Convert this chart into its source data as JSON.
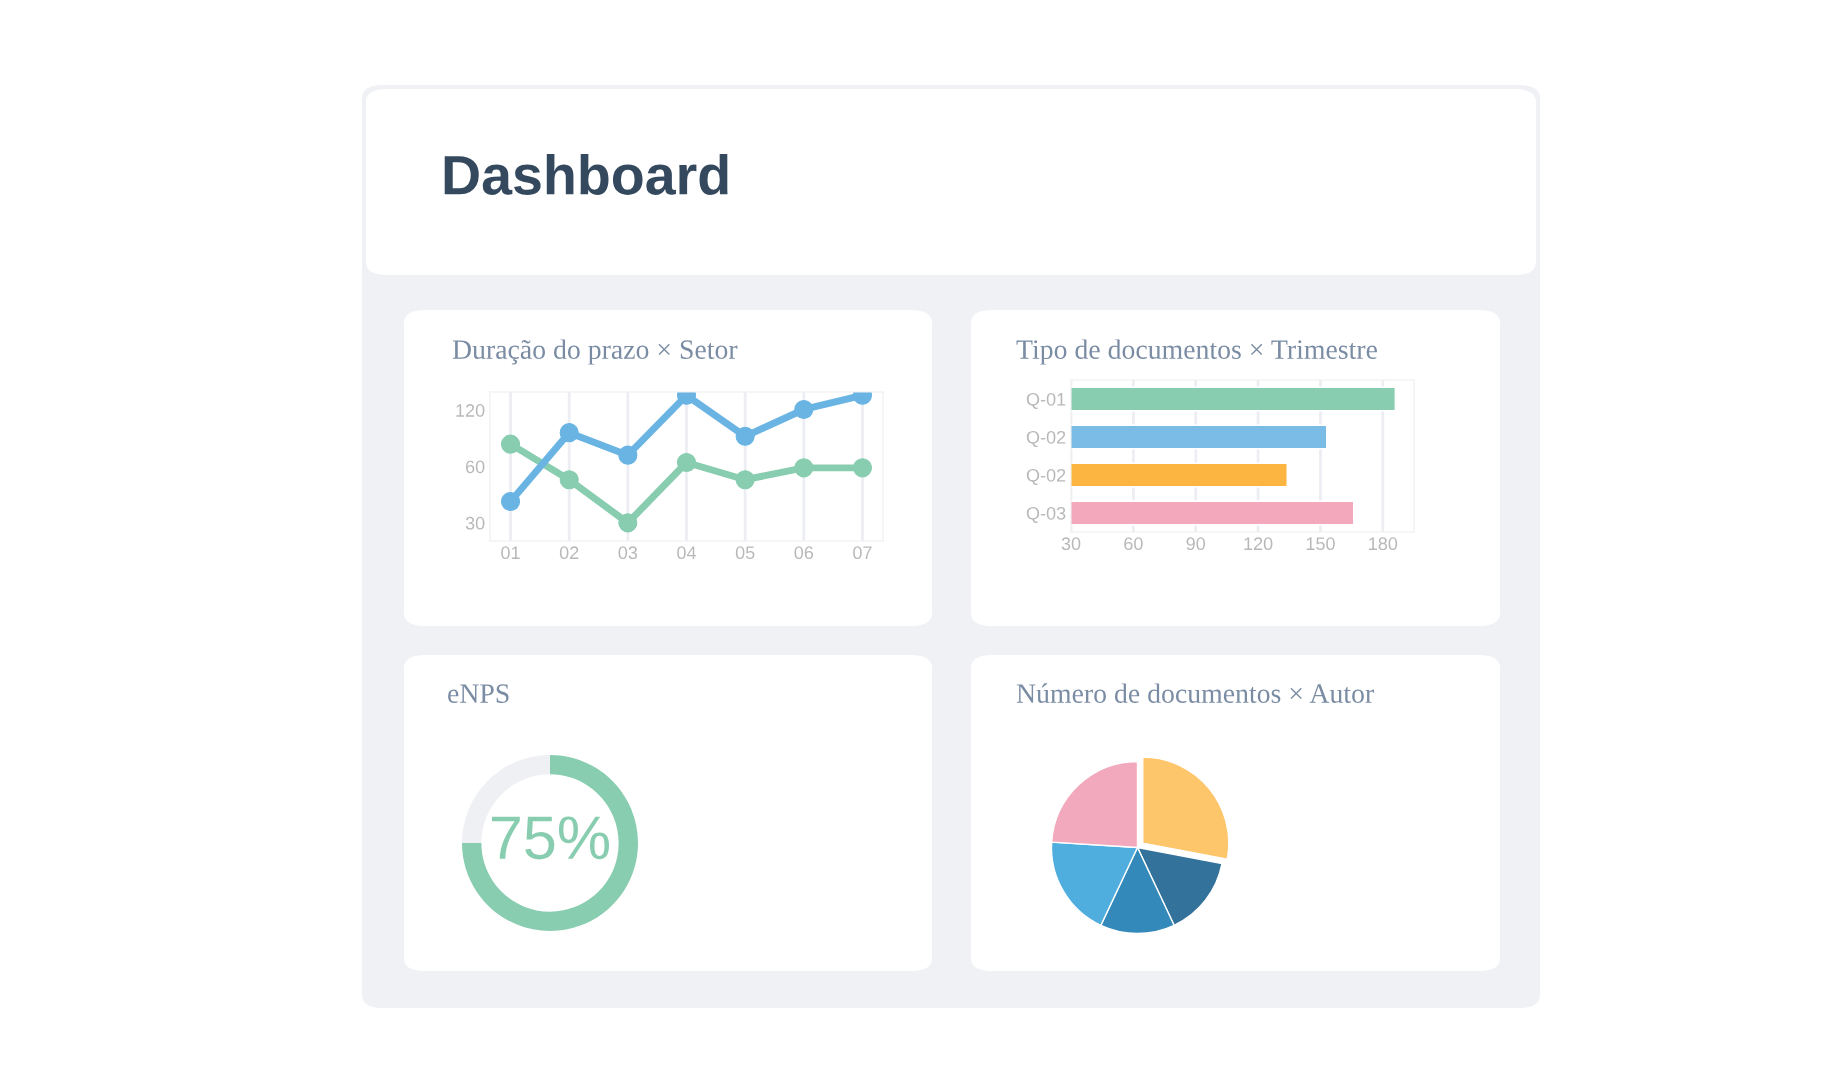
{
  "chart_data": [
    {
      "type": "other",
      "title": "Dashboard"
    },
    {
      "type": "line",
      "title": "Duração do prazo × Setor",
      "categories": [
        "01",
        "02",
        "03",
        "04",
        "05",
        "06",
        "07"
      ],
      "series": [
        {
          "color": "#88cdb0",
          "values": [
            79,
            51,
            30,
            63,
            51,
            59,
            59
          ]
        },
        {
          "color": "#6ab4e4",
          "values": [
            39,
            91,
            69,
            144,
            87,
            121,
            144
          ]
        }
      ],
      "log": "y",
      "ylim": [
        24,
        150
      ],
      "yticks": [
        30,
        60,
        120
      ],
      "grid": "x",
      "marker": "circle",
      "line_style": "solid"
    },
    {
      "type": "bar",
      "orientation": "horizontal",
      "title": "Tipo de documentos × Trimestre",
      "categories": [
        "Q-01",
        "Q-02",
        "Q-02",
        "Q-03"
      ],
      "values": [
        186,
        153,
        134,
        166
      ],
      "colors": [
        "#88cdb0",
        "#7bbce6",
        "#fbb540",
        "#f3a8bc"
      ],
      "xlim": [
        30,
        195
      ],
      "xticks": [
        30,
        60,
        90,
        120,
        150,
        180
      ],
      "grid": "x"
    },
    {
      "type": "donut",
      "title": "eNPS",
      "categories": [
        null,
        null
      ],
      "values": [
        75,
        25
      ],
      "colors": [
        "#88cdb0",
        "#eff0f4"
      ],
      "annotations": [
        "75%"
      ]
    },
    {
      "type": "pie",
      "title": "Número de documentos × Autor",
      "categories": [
        null,
        null,
        null,
        null,
        null
      ],
      "values": [
        28,
        15,
        14,
        19,
        24
      ],
      "colors": [
        "#fdc66b",
        "#33729a",
        "#3389b9",
        "#50aedf",
        "#f3a9bd"
      ]
    }
  ]
}
